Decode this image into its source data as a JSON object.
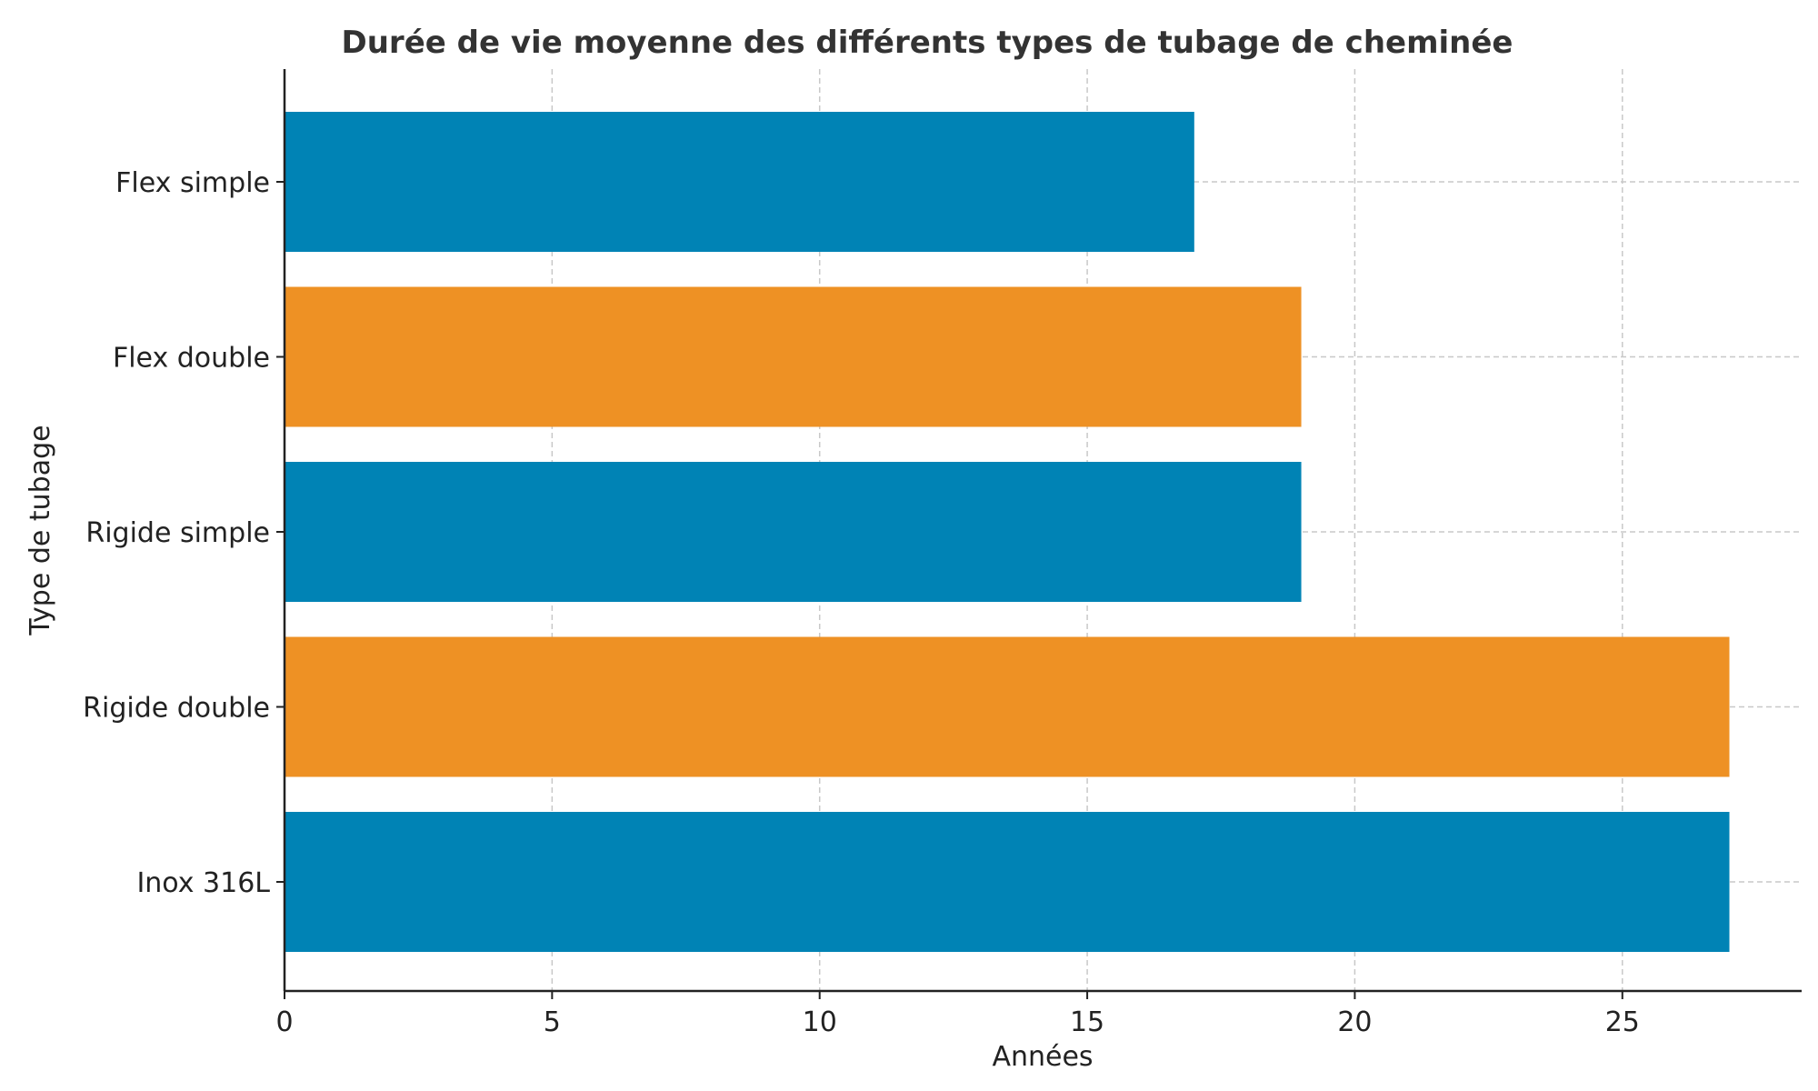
{
  "chart_data": {
    "type": "bar",
    "orientation": "horizontal",
    "title": "Durée de vie moyenne des différents types de tubage de cheminée",
    "xlabel": "Années",
    "ylabel": "Type de tubage",
    "categories": [
      "Flex simple",
      "Flex double",
      "Rigide simple",
      "Rigide double",
      "Inox 316L"
    ],
    "values": [
      17,
      19,
      19,
      27,
      27
    ],
    "bar_colors": [
      "#0083b5",
      "#ee9124",
      "#0083b5",
      "#ee9124",
      "#0083b5"
    ],
    "xlim": [
      0,
      28.35
    ],
    "xticks": [
      0,
      5,
      10,
      15,
      20,
      25
    ],
    "grid": true,
    "grid_color": "#c8c8c8"
  }
}
